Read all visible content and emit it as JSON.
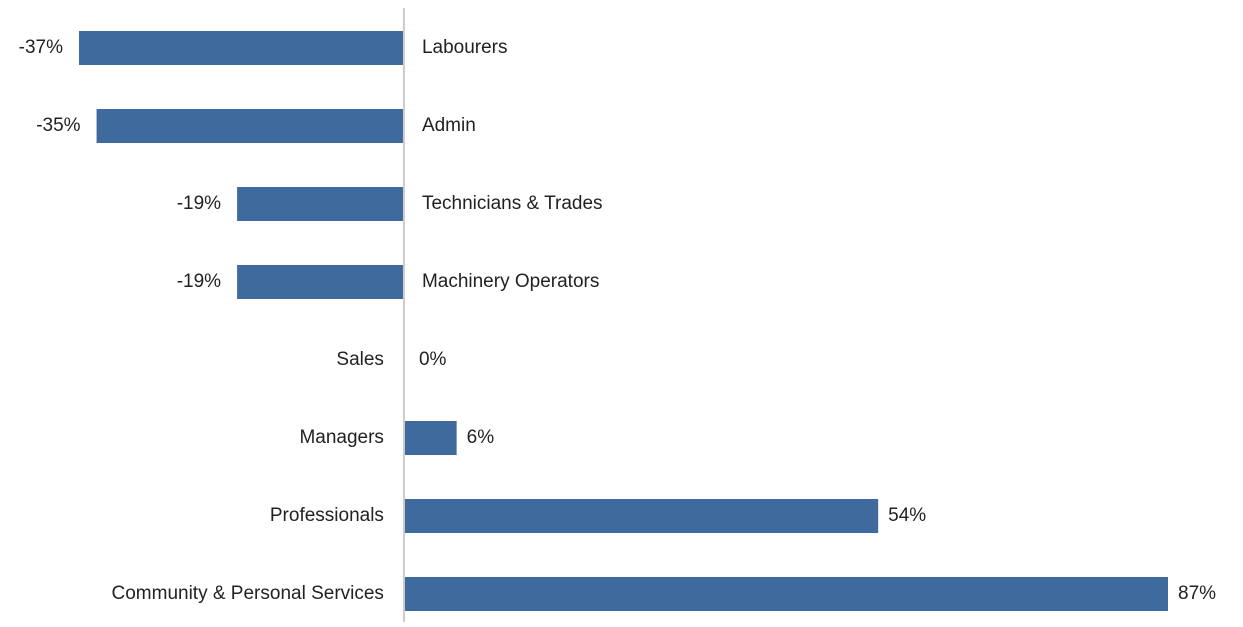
{
  "chart_data": {
    "type": "bar",
    "orientation": "horizontal",
    "color": "#3f6a9e",
    "categories": [
      "Labourers",
      "Admin",
      "Technicians & Trades",
      "Machinery Operators",
      "Sales",
      "Managers",
      "Professionals",
      "Community & Personal Services"
    ],
    "values": [
      -37,
      -35,
      -19,
      -19,
      0,
      6,
      54,
      87
    ],
    "value_labels": [
      "-37%",
      "-35%",
      "-19%",
      "-19%",
      "0%",
      "6%",
      "54%",
      "87%"
    ]
  }
}
